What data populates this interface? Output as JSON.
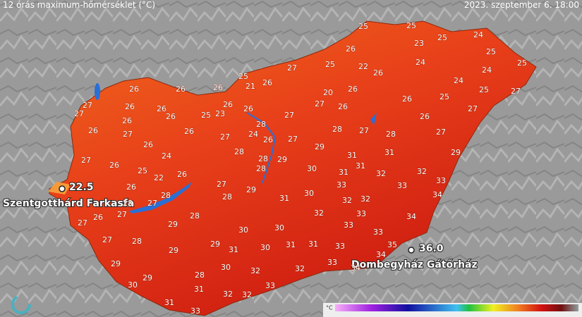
{
  "header": {
    "title": "12 órás maximum-hőmérséklet (°C)",
    "timestamp": "2023. szeptember 6. 18:00"
  },
  "labels": [
    25,
    25,
    24,
    25,
    26,
    23,
    25,
    25,
    27,
    25,
    22,
    26,
    24,
    25,
    21,
    24,
    26,
    26,
    26,
    26,
    20,
    26,
    24,
    27,
    25,
    25,
    27,
    26,
    26,
    25,
    26,
    23,
    26,
    27,
    27,
    26,
    26,
    26,
    27,
    27,
    26,
    26,
    28,
    24,
    26,
    27,
    28,
    27,
    28,
    27,
    27,
    26,
    26,
    27,
    28,
    29,
    27,
    26,
    24,
    28,
    29,
    31,
    31,
    31,
    29,
    25,
    22,
    26,
    28,
    30,
    31,
    32,
    32,
    33,
    26,
    26,
    27,
    29,
    28,
    28,
    30,
    33,
    31,
    33,
    32,
    32,
    34,
    28,
    27,
    27,
    26,
    27,
    28,
    29,
    32,
    33,
    34,
    30,
    30,
    33,
    33,
    27,
    28,
    29,
    31,
    30,
    31,
    31,
    33,
    33,
    35,
    29,
    34,
    29,
    30,
    32,
    32,
    34,
    28,
    29,
    30,
    31,
    33,
    32,
    32,
    31,
    33
  ],
  "stations": [
    {
      "name": "Szentgotthárd Farkasfa",
      "value": "22.5"
    },
    {
      "name": "Dombegyház Gátőrház",
      "value": "36.0"
    }
  ],
  "colorbar": {
    "unit": "°C"
  }
}
